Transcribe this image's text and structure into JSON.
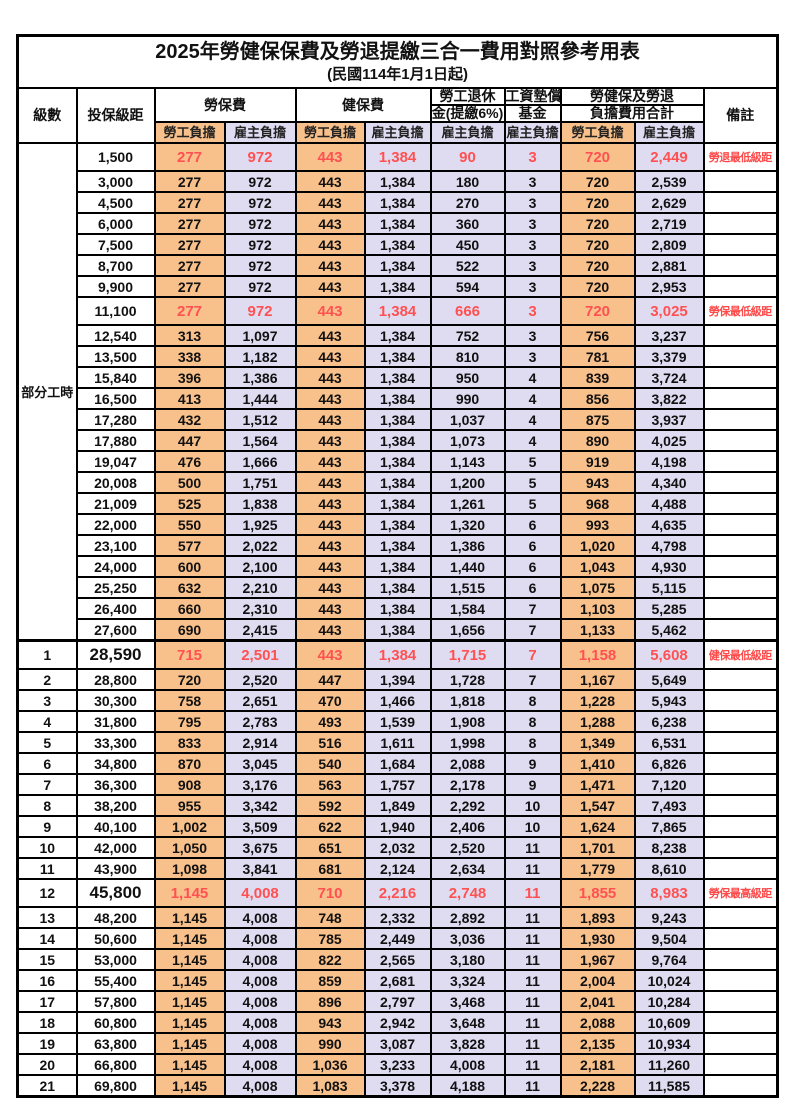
{
  "title": "2025年勞健保保費及勞退提繳三合一費用對照參考用表",
  "subtitle": "(民國114年1月1日起)",
  "header": {
    "level": "級數",
    "bracket": "投保級距",
    "labor_group": "勞保費",
    "health_group": "健保費",
    "pension_line1": "勞工退休",
    "pension_line2": "金(提繳6%)",
    "wage_fund_line1": "工資墊償",
    "wage_fund_line2": "基金",
    "total_line1": "勞健保及勞退",
    "total_line2": "負擔費用合計",
    "note": "備註",
    "employee": "勞工負擔",
    "employer": "雇主負擔"
  },
  "part_time_label": "部分工時",
  "part_time_rowspan": 23,
  "colors": {
    "employee_bg": "#F8C08A",
    "employer_bg": "#DFDCF2",
    "highlight_text": "#FF5151",
    "note_text": "#FF4A4A",
    "border": "#000000"
  },
  "rows": [
    {
      "level": "",
      "bracket": "1,500",
      "values": [
        "277",
        "972",
        "443",
        "1,384",
        "90",
        "3",
        "720",
        "2,449"
      ],
      "note": "勞退最低級距",
      "highlight": true,
      "big": false,
      "sep": false
    },
    {
      "level": "",
      "bracket": "3,000",
      "values": [
        "277",
        "972",
        "443",
        "1,384",
        "180",
        "3",
        "720",
        "2,539"
      ],
      "note": "",
      "highlight": false,
      "big": false,
      "sep": false
    },
    {
      "level": "",
      "bracket": "4,500",
      "values": [
        "277",
        "972",
        "443",
        "1,384",
        "270",
        "3",
        "720",
        "2,629"
      ],
      "note": "",
      "highlight": false,
      "big": false,
      "sep": false
    },
    {
      "level": "",
      "bracket": "6,000",
      "values": [
        "277",
        "972",
        "443",
        "1,384",
        "360",
        "3",
        "720",
        "2,719"
      ],
      "note": "",
      "highlight": false,
      "big": false,
      "sep": false
    },
    {
      "level": "",
      "bracket": "7,500",
      "values": [
        "277",
        "972",
        "443",
        "1,384",
        "450",
        "3",
        "720",
        "2,809"
      ],
      "note": "",
      "highlight": false,
      "big": false,
      "sep": false
    },
    {
      "level": "",
      "bracket": "8,700",
      "values": [
        "277",
        "972",
        "443",
        "1,384",
        "522",
        "3",
        "720",
        "2,881"
      ],
      "note": "",
      "highlight": false,
      "big": false,
      "sep": false
    },
    {
      "level": "",
      "bracket": "9,900",
      "values": [
        "277",
        "972",
        "443",
        "1,384",
        "594",
        "3",
        "720",
        "2,953"
      ],
      "note": "",
      "highlight": false,
      "big": false,
      "sep": false
    },
    {
      "level": "",
      "bracket": "11,100",
      "values": [
        "277",
        "972",
        "443",
        "1,384",
        "666",
        "3",
        "720",
        "3,025"
      ],
      "note": "勞保最低級距",
      "highlight": true,
      "big": false,
      "sep": false
    },
    {
      "level": "",
      "bracket": "12,540",
      "values": [
        "313",
        "1,097",
        "443",
        "1,384",
        "752",
        "3",
        "756",
        "3,237"
      ],
      "note": "",
      "highlight": false,
      "big": false,
      "sep": false
    },
    {
      "level": "",
      "bracket": "13,500",
      "values": [
        "338",
        "1,182",
        "443",
        "1,384",
        "810",
        "3",
        "781",
        "3,379"
      ],
      "note": "",
      "highlight": false,
      "big": false,
      "sep": false
    },
    {
      "level": "",
      "bracket": "15,840",
      "values": [
        "396",
        "1,386",
        "443",
        "1,384",
        "950",
        "4",
        "839",
        "3,724"
      ],
      "note": "",
      "highlight": false,
      "big": false,
      "sep": false
    },
    {
      "level": "",
      "bracket": "16,500",
      "values": [
        "413",
        "1,444",
        "443",
        "1,384",
        "990",
        "4",
        "856",
        "3,822"
      ],
      "note": "",
      "highlight": false,
      "big": false,
      "sep": false
    },
    {
      "level": "",
      "bracket": "17,280",
      "values": [
        "432",
        "1,512",
        "443",
        "1,384",
        "1,037",
        "4",
        "875",
        "3,937"
      ],
      "note": "",
      "highlight": false,
      "big": false,
      "sep": false
    },
    {
      "level": "",
      "bracket": "17,880",
      "values": [
        "447",
        "1,564",
        "443",
        "1,384",
        "1,073",
        "4",
        "890",
        "4,025"
      ],
      "note": "",
      "highlight": false,
      "big": false,
      "sep": false
    },
    {
      "level": "",
      "bracket": "19,047",
      "values": [
        "476",
        "1,666",
        "443",
        "1,384",
        "1,143",
        "5",
        "919",
        "4,198"
      ],
      "note": "",
      "highlight": false,
      "big": false,
      "sep": false
    },
    {
      "level": "",
      "bracket": "20,008",
      "values": [
        "500",
        "1,751",
        "443",
        "1,384",
        "1,200",
        "5",
        "943",
        "4,340"
      ],
      "note": "",
      "highlight": false,
      "big": false,
      "sep": false
    },
    {
      "level": "",
      "bracket": "21,009",
      "values": [
        "525",
        "1,838",
        "443",
        "1,384",
        "1,261",
        "5",
        "968",
        "4,488"
      ],
      "note": "",
      "highlight": false,
      "big": false,
      "sep": false
    },
    {
      "level": "",
      "bracket": "22,000",
      "values": [
        "550",
        "1,925",
        "443",
        "1,384",
        "1,320",
        "6",
        "993",
        "4,635"
      ],
      "note": "",
      "highlight": false,
      "big": false,
      "sep": false
    },
    {
      "level": "",
      "bracket": "23,100",
      "values": [
        "577",
        "2,022",
        "443",
        "1,384",
        "1,386",
        "6",
        "1,020",
        "4,798"
      ],
      "note": "",
      "highlight": false,
      "big": false,
      "sep": false
    },
    {
      "level": "",
      "bracket": "24,000",
      "values": [
        "600",
        "2,100",
        "443",
        "1,384",
        "1,440",
        "6",
        "1,043",
        "4,930"
      ],
      "note": "",
      "highlight": false,
      "big": false,
      "sep": false
    },
    {
      "level": "",
      "bracket": "25,250",
      "values": [
        "632",
        "2,210",
        "443",
        "1,384",
        "1,515",
        "6",
        "1,075",
        "5,115"
      ],
      "note": "",
      "highlight": false,
      "big": false,
      "sep": false
    },
    {
      "level": "",
      "bracket": "26,400",
      "values": [
        "660",
        "2,310",
        "443",
        "1,384",
        "1,584",
        "7",
        "1,103",
        "5,285"
      ],
      "note": "",
      "highlight": false,
      "big": false,
      "sep": false
    },
    {
      "level": "",
      "bracket": "27,600",
      "values": [
        "690",
        "2,415",
        "443",
        "1,384",
        "1,656",
        "7",
        "1,133",
        "5,462"
      ],
      "note": "",
      "highlight": false,
      "big": false,
      "sep": false
    },
    {
      "level": "1",
      "bracket": "28,590",
      "values": [
        "715",
        "2,501",
        "443",
        "1,384",
        "1,715",
        "7",
        "1,158",
        "5,608"
      ],
      "note": "健保最低級距",
      "highlight": true,
      "big": true,
      "sep": true
    },
    {
      "level": "2",
      "bracket": "28,800",
      "values": [
        "720",
        "2,520",
        "447",
        "1,394",
        "1,728",
        "7",
        "1,167",
        "5,649"
      ],
      "note": "",
      "highlight": false,
      "big": false,
      "sep": false
    },
    {
      "level": "3",
      "bracket": "30,300",
      "values": [
        "758",
        "2,651",
        "470",
        "1,466",
        "1,818",
        "8",
        "1,228",
        "5,943"
      ],
      "note": "",
      "highlight": false,
      "big": false,
      "sep": false
    },
    {
      "level": "4",
      "bracket": "31,800",
      "values": [
        "795",
        "2,783",
        "493",
        "1,539",
        "1,908",
        "8",
        "1,288",
        "6,238"
      ],
      "note": "",
      "highlight": false,
      "big": false,
      "sep": false
    },
    {
      "level": "5",
      "bracket": "33,300",
      "values": [
        "833",
        "2,914",
        "516",
        "1,611",
        "1,998",
        "8",
        "1,349",
        "6,531"
      ],
      "note": "",
      "highlight": false,
      "big": false,
      "sep": false
    },
    {
      "level": "6",
      "bracket": "34,800",
      "values": [
        "870",
        "3,045",
        "540",
        "1,684",
        "2,088",
        "9",
        "1,410",
        "6,826"
      ],
      "note": "",
      "highlight": false,
      "big": false,
      "sep": false
    },
    {
      "level": "7",
      "bracket": "36,300",
      "values": [
        "908",
        "3,176",
        "563",
        "1,757",
        "2,178",
        "9",
        "1,471",
        "7,120"
      ],
      "note": "",
      "highlight": false,
      "big": false,
      "sep": false
    },
    {
      "level": "8",
      "bracket": "38,200",
      "values": [
        "955",
        "3,342",
        "592",
        "1,849",
        "2,292",
        "10",
        "1,547",
        "7,493"
      ],
      "note": "",
      "highlight": false,
      "big": false,
      "sep": false
    },
    {
      "level": "9",
      "bracket": "40,100",
      "values": [
        "1,002",
        "3,509",
        "622",
        "1,940",
        "2,406",
        "10",
        "1,624",
        "7,865"
      ],
      "note": "",
      "highlight": false,
      "big": false,
      "sep": false
    },
    {
      "level": "10",
      "bracket": "42,000",
      "values": [
        "1,050",
        "3,675",
        "651",
        "2,032",
        "2,520",
        "11",
        "1,701",
        "8,238"
      ],
      "note": "",
      "highlight": false,
      "big": false,
      "sep": false
    },
    {
      "level": "11",
      "bracket": "43,900",
      "values": [
        "1,098",
        "3,841",
        "681",
        "2,124",
        "2,634",
        "11",
        "1,779",
        "8,610"
      ],
      "note": "",
      "highlight": false,
      "big": false,
      "sep": false
    },
    {
      "level": "12",
      "bracket": "45,800",
      "values": [
        "1,145",
        "4,008",
        "710",
        "2,216",
        "2,748",
        "11",
        "1,855",
        "8,983"
      ],
      "note": "勞保最高級距",
      "highlight": true,
      "big": true,
      "sep": false
    },
    {
      "level": "13",
      "bracket": "48,200",
      "values": [
        "1,145",
        "4,008",
        "748",
        "2,332",
        "2,892",
        "11",
        "1,893",
        "9,243"
      ],
      "note": "",
      "highlight": false,
      "big": false,
      "sep": false
    },
    {
      "level": "14",
      "bracket": "50,600",
      "values": [
        "1,145",
        "4,008",
        "785",
        "2,449",
        "3,036",
        "11",
        "1,930",
        "9,504"
      ],
      "note": "",
      "highlight": false,
      "big": false,
      "sep": false
    },
    {
      "level": "15",
      "bracket": "53,000",
      "values": [
        "1,145",
        "4,008",
        "822",
        "2,565",
        "3,180",
        "11",
        "1,967",
        "9,764"
      ],
      "note": "",
      "highlight": false,
      "big": false,
      "sep": false
    },
    {
      "level": "16",
      "bracket": "55,400",
      "values": [
        "1,145",
        "4,008",
        "859",
        "2,681",
        "3,324",
        "11",
        "2,004",
        "10,024"
      ],
      "note": "",
      "highlight": false,
      "big": false,
      "sep": false
    },
    {
      "level": "17",
      "bracket": "57,800",
      "values": [
        "1,145",
        "4,008",
        "896",
        "2,797",
        "3,468",
        "11",
        "2,041",
        "10,284"
      ],
      "note": "",
      "highlight": false,
      "big": false,
      "sep": false
    },
    {
      "level": "18",
      "bracket": "60,800",
      "values": [
        "1,145",
        "4,008",
        "943",
        "2,942",
        "3,648",
        "11",
        "2,088",
        "10,609"
      ],
      "note": "",
      "highlight": false,
      "big": false,
      "sep": false
    },
    {
      "level": "19",
      "bracket": "63,800",
      "values": [
        "1,145",
        "4,008",
        "990",
        "3,087",
        "3,828",
        "11",
        "2,135",
        "10,934"
      ],
      "note": "",
      "highlight": false,
      "big": false,
      "sep": false
    },
    {
      "level": "20",
      "bracket": "66,800",
      "values": [
        "1,145",
        "4,008",
        "1,036",
        "3,233",
        "4,008",
        "11",
        "2,181",
        "11,260"
      ],
      "note": "",
      "highlight": false,
      "big": false,
      "sep": false
    },
    {
      "level": "21",
      "bracket": "69,800",
      "values": [
        "1,145",
        "4,008",
        "1,083",
        "3,378",
        "4,188",
        "11",
        "2,228",
        "11,585"
      ],
      "note": "",
      "highlight": false,
      "big": false,
      "sep": false
    }
  ]
}
